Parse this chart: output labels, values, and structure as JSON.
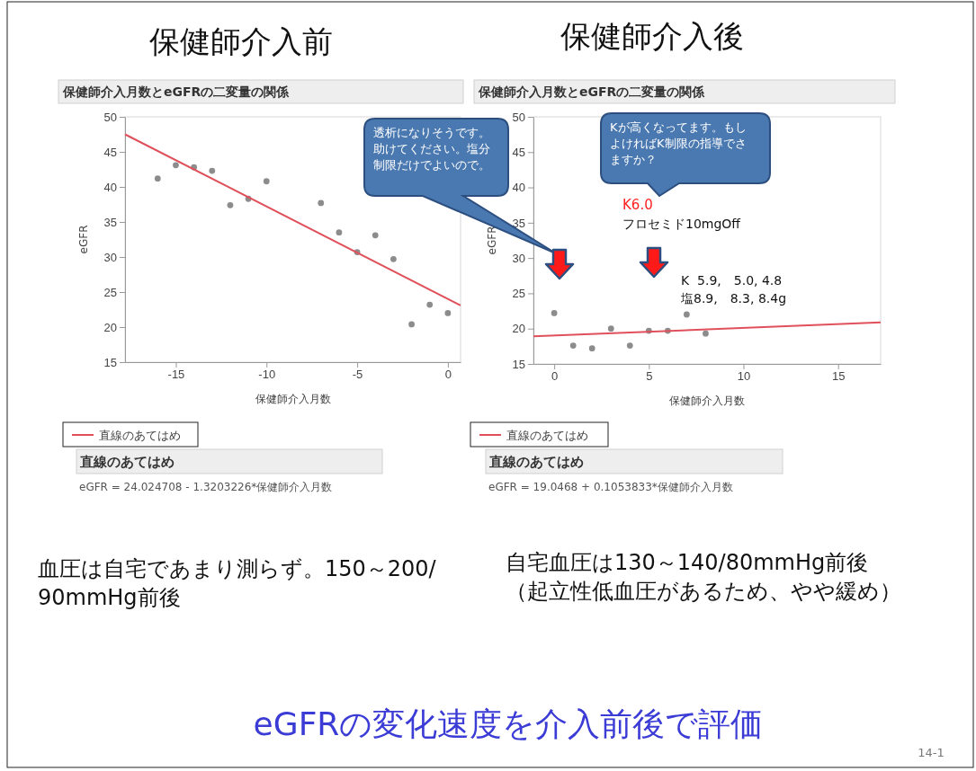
{
  "chart_data": [
    {
      "type": "scatter",
      "title": "保健師介入前",
      "subtitle": "保健師介入月数とeGFRの二変量の関係",
      "xlabel": "保健師介入月数",
      "ylabel": "eGFR",
      "xlim": [
        -17.8,
        0.7
      ],
      "xticks": [
        -15,
        -10,
        -5,
        0
      ],
      "ylim": [
        15,
        50
      ],
      "yticks": [
        15,
        20,
        25,
        30,
        35,
        40,
        45,
        50
      ],
      "grid": false,
      "legend": "bottom",
      "series": [
        {
          "color": "#8c8c8c",
          "marker": "circle",
          "x": [
            -16,
            -15,
            -14,
            -13,
            -12,
            -11,
            -10,
            -7,
            -6,
            -5,
            -4,
            -3,
            -2,
            -1,
            0
          ],
          "values": [
            41.2,
            43.1,
            42.8,
            42.3,
            37.4,
            38.3,
            40.8,
            37.7,
            33.5,
            30.7,
            33.1,
            29.7,
            20.4,
            23.2,
            22.0
          ]
        },
        {
          "type": "line",
          "name": "直線のあてはめ",
          "color": "#e0505a",
          "line_style": "solid",
          "x": [
            -17.8,
            0.7
          ],
          "values": [
            47.5,
            23.1
          ]
        }
      ],
      "annotations": [
        "直線のあてはめ",
        "eGFR = 24.024708 - 1.3203226*保健師介入月数",
        "血圧は自宅であまり測らず。150～200/90mmHg前後",
        "eGFRの変化速度を介入前後で評価",
        "14-1"
      ]
    },
    {
      "type": "scatter",
      "title": "保健師介入後",
      "subtitle": "保健師介入月数とeGFRの二変量の関係",
      "xlabel": "保健師介入月数",
      "ylabel": "eGFR",
      "xlim": [
        -1.1,
        17.25
      ],
      "xticks": [
        0,
        5,
        10,
        15
      ],
      "ylim": [
        15,
        50
      ],
      "yticks": [
        15,
        20,
        25,
        30,
        35,
        40,
        45,
        50
      ],
      "grid": false,
      "legend": "bottom",
      "series": [
        {
          "color": "#8c8c8c",
          "marker": "circle",
          "x": [
            0,
            1,
            2,
            3,
            4,
            5,
            6,
            7,
            8
          ],
          "values": [
            22.2,
            17.6,
            17.2,
            20.0,
            17.6,
            19.7,
            19.7,
            22.0,
            19.3
          ]
        },
        {
          "type": "line",
          "name": "直線のあてはめ",
          "color": "#e0505a",
          "line_style": "solid",
          "x": [
            -1.1,
            17.25
          ],
          "values": [
            18.9,
            20.9
          ]
        }
      ],
      "annotations": [
        "直線のあてはめ",
        "eGFR = 19.0468 + 0.1053833*保健師介入月数",
        "自宅血圧は130～140/80mmHg前後（起立性低血圧があるため、やや緩め）",
        "透析になりそうです。助けてください。塩分制限だけでよいので。",
        "Kが高くなってます。もしよければK制限の指導でさますか？",
        "K6.0",
        "フロセミド10mgOff",
        "K  5.9,　5.0, 4.8",
        "塩8.9,　8.3, 8.4g"
      ]
    }
  ]
}
